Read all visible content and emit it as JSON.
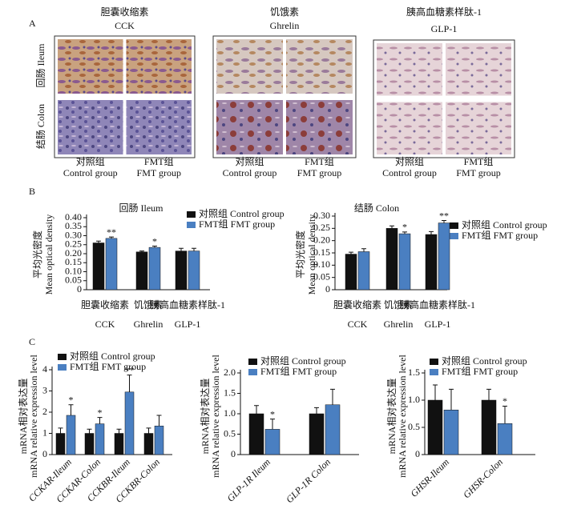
{
  "panel_labels": [
    "A",
    "B",
    "C"
  ],
  "panel_a": {
    "hormones": [
      {
        "zh": "胆囊收缩素",
        "en": "CCK"
      },
      {
        "zh": "饥饿素",
        "en": "Ghrelin"
      },
      {
        "zh": "胰高血糖素样肽-1",
        "en": "GLP-1"
      }
    ],
    "rows": [
      "回肠  Ileum",
      "结肠  Colon"
    ],
    "groups": [
      {
        "zh": "对照组",
        "en": "Control group"
      },
      {
        "zh": "FMT组",
        "en": "FMT group"
      }
    ]
  },
  "chart_data": [
    {
      "type": "bar",
      "title": "回肠  Ileum",
      "ylabel": [
        "平均光密度",
        "Mean optical density"
      ],
      "categories": [
        "胆囊收缩素",
        "饥饿素",
        "胰高血糖素样肽-1"
      ],
      "categories_en": [
        "CCK",
        "Ghrelin",
        "GLP-1"
      ],
      "ylim": [
        0,
        0.4
      ],
      "yticks": [
        0,
        0.05,
        {
          "value": 0.1,
          "label": "0.10"
        },
        0.15,
        {
          "value": 0.2,
          "label": "0.20"
        },
        0.25,
        {
          "value": 0.3,
          "label": "0.30"
        },
        0.35,
        {
          "value": 0.4,
          "label": "0.40"
        }
      ],
      "series": [
        {
          "name": "对照组  Control group",
          "color": "#111111",
          "values": [
            0.26,
            0.21,
            0.215
          ],
          "errors": [
            0.01,
            0.005,
            0.015
          ],
          "annotations": [
            null,
            null,
            null
          ]
        },
        {
          "name": "FMT组  FMT group",
          "color": "#4a7fc1",
          "values": [
            0.285,
            0.235,
            0.215
          ],
          "errors": [
            0.008,
            0.007,
            0.015
          ],
          "annotations": [
            "**",
            "*",
            null
          ]
        }
      ]
    },
    {
      "type": "bar",
      "title": "结肠  Colon",
      "ylabel": [
        "平均光密度",
        "Mean optical density"
      ],
      "categories": [
        "胆囊收缩素",
        "饥饿素",
        "胰高血糖素样肽-1"
      ],
      "categories_en": [
        "CCK",
        "Ghrelin",
        "GLP-1"
      ],
      "ylim": [
        0,
        0.3
      ],
      "yticks": [
        0,
        0.05,
        {
          "value": 0.1,
          "label": "0.10"
        },
        0.15,
        {
          "value": 0.2,
          "label": "0.20"
        },
        0.25,
        {
          "value": 0.3,
          "label": "0.30"
        }
      ],
      "series": [
        {
          "name": "对照组  Control group",
          "color": "#111111",
          "values": [
            0.145,
            0.25,
            0.225
          ],
          "errors": [
            0.008,
            0.01,
            0.012
          ],
          "annotations": [
            null,
            null,
            null
          ]
        },
        {
          "name": "FMT组  FMT group",
          "color": "#4a7fc1",
          "values": [
            0.155,
            0.228,
            0.272
          ],
          "errors": [
            0.012,
            0.007,
            0.01
          ],
          "annotations": [
            null,
            "*",
            "**"
          ]
        }
      ]
    },
    {
      "type": "bar",
      "ylabel": [
        "mRNA相对表达量",
        "mRNA relative expression level"
      ],
      "categories": [
        "CCKAR-Ileum",
        "CCKAR-Colon",
        "CCKBR-Ileum",
        "CCKBR-Colon"
      ],
      "ylim": [
        0,
        4
      ],
      "yticks": [
        0,
        1,
        2,
        3,
        4
      ],
      "series": [
        {
          "name": "对照组  Control group",
          "color": "#111111",
          "values": [
            1,
            1,
            1,
            1
          ],
          "errors": [
            0.25,
            0.2,
            0.2,
            0.25
          ],
          "annotations": [
            null,
            null,
            null,
            null
          ]
        },
        {
          "name": "FMT组  FMT group",
          "color": "#4a7fc1",
          "values": [
            1.85,
            1.45,
            2.95,
            1.35
          ],
          "errors": [
            0.5,
            0.3,
            0.8,
            0.5
          ],
          "annotations": [
            "*",
            "*",
            "**",
            null
          ]
        }
      ]
    },
    {
      "type": "bar",
      "ylabel": [
        "mRNA相对表达量",
        "mRNA relative expression level"
      ],
      "categories": [
        "GLP-1R Ileum",
        "GLP-1R Colon"
      ],
      "ylim": [
        0,
        2
      ],
      "yticks": [
        0,
        0.5,
        {
          "value": 1,
          "label": "1.0"
        },
        1.5,
        {
          "value": 2,
          "label": "2.0"
        }
      ],
      "series": [
        {
          "name": "对照组  Control group",
          "color": "#111111",
          "values": [
            1,
            1
          ],
          "errors": [
            0.2,
            0.15
          ],
          "annotations": [
            null,
            null
          ]
        },
        {
          "name": "FMT组  FMT group",
          "color": "#4a7fc1",
          "values": [
            0.62,
            1.22
          ],
          "errors": [
            0.25,
            0.38
          ],
          "annotations": [
            "*",
            null
          ]
        }
      ]
    },
    {
      "type": "bar",
      "ylabel": [
        "mRNA相对表达量",
        "mRNA relative expression level"
      ],
      "categories": [
        "GHSR-Ileum",
        "GHSR-Colon"
      ],
      "ylim": [
        0,
        1.5
      ],
      "yticks": [
        0,
        0.5,
        {
          "value": 1,
          "label": "1.0"
        },
        1.5
      ],
      "series": [
        {
          "name": "对照组  Control group",
          "color": "#111111",
          "values": [
            1,
            1
          ],
          "errors": [
            0.28,
            0.2
          ],
          "annotations": [
            null,
            null
          ]
        },
        {
          "name": "FMT组  FMT group",
          "color": "#4a7fc1",
          "values": [
            0.82,
            0.57
          ],
          "errors": [
            0.38,
            0.32
          ],
          "annotations": [
            null,
            "*"
          ]
        }
      ]
    }
  ]
}
